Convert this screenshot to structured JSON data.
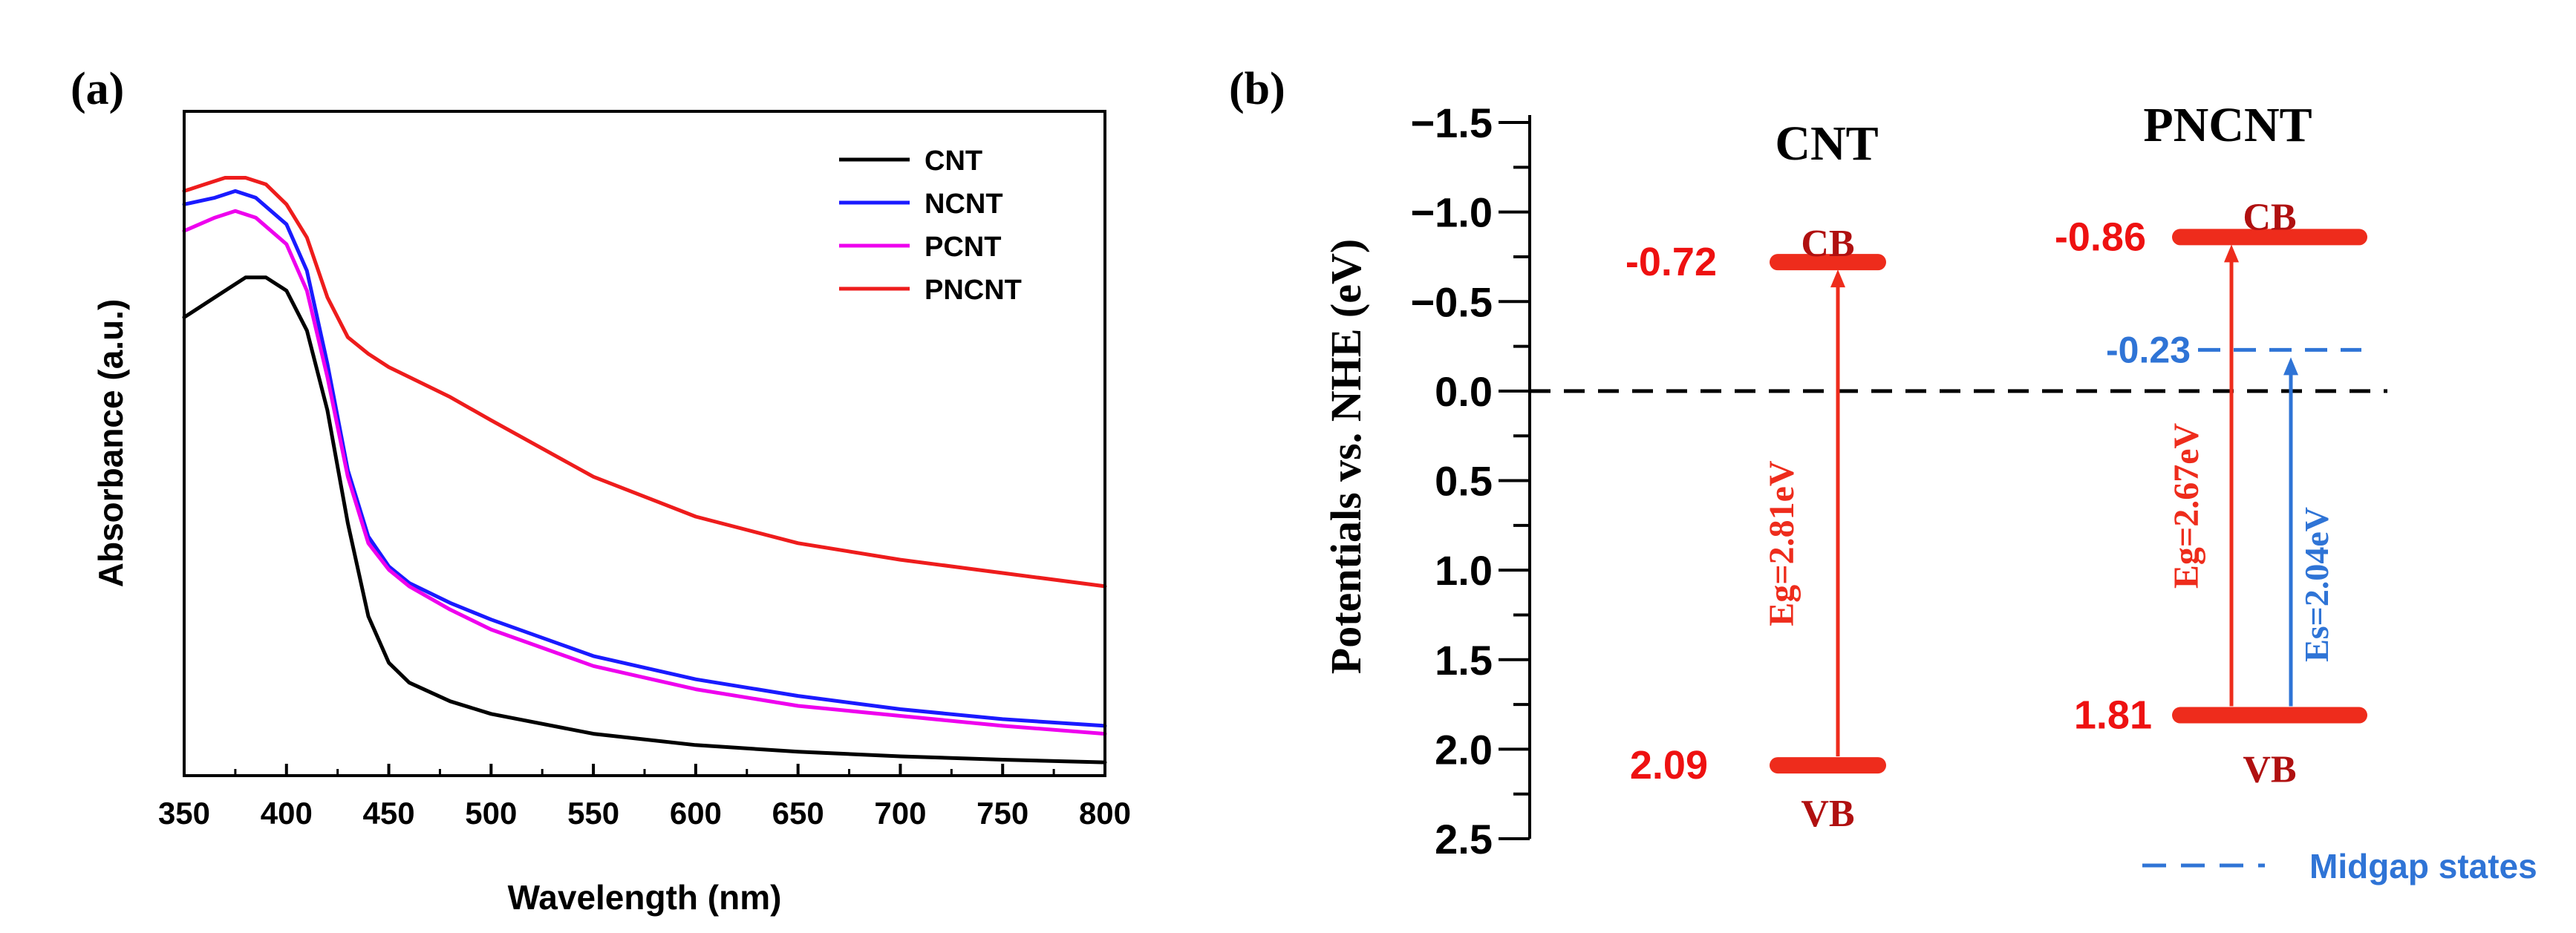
{
  "figure": {
    "panel_a_label": "(a)",
    "panel_b_label": "(b)"
  },
  "chart_data": [
    {
      "type": "line",
      "panel": "(a)",
      "title": "",
      "xlabel": "Wavelength (nm)",
      "ylabel": "Absorbance (a.u.)",
      "xlim": [
        350,
        800
      ],
      "ylim": [
        0,
        1
      ],
      "xticks": [
        350,
        400,
        450,
        500,
        550,
        600,
        650,
        700,
        750,
        800
      ],
      "yticks_shown": false,
      "legend_position": "top-right",
      "series": [
        {
          "name": "CNT",
          "color": "#000000",
          "x": [
            350,
            365,
            380,
            390,
            400,
            410,
            420,
            430,
            440,
            450,
            460,
            480,
            500,
            550,
            600,
            650,
            700,
            750,
            800
          ],
          "y": [
            0.69,
            0.72,
            0.75,
            0.75,
            0.73,
            0.67,
            0.55,
            0.38,
            0.24,
            0.17,
            0.14,
            0.112,
            0.093,
            0.063,
            0.046,
            0.036,
            0.029,
            0.024,
            0.02
          ]
        },
        {
          "name": "NCNT",
          "color": "#1a1aff",
          "x": [
            350,
            365,
            375,
            385,
            400,
            410,
            420,
            430,
            440,
            450,
            460,
            480,
            500,
            550,
            600,
            650,
            700,
            750,
            800
          ],
          "y": [
            0.86,
            0.87,
            0.88,
            0.87,
            0.83,
            0.76,
            0.62,
            0.46,
            0.36,
            0.315,
            0.29,
            0.26,
            0.235,
            0.18,
            0.145,
            0.12,
            0.1,
            0.085,
            0.075
          ]
        },
        {
          "name": "PCNT",
          "color": "#ee00ee",
          "x": [
            350,
            365,
            375,
            385,
            400,
            410,
            420,
            430,
            440,
            450,
            460,
            480,
            500,
            550,
            600,
            650,
            700,
            750,
            800
          ],
          "y": [
            0.82,
            0.84,
            0.85,
            0.84,
            0.8,
            0.73,
            0.6,
            0.45,
            0.35,
            0.31,
            0.285,
            0.25,
            0.22,
            0.165,
            0.13,
            0.105,
            0.09,
            0.075,
            0.063
          ]
        },
        {
          "name": "PNCNT",
          "color": "#ee1c1c",
          "x": [
            350,
            360,
            370,
            380,
            390,
            400,
            410,
            420,
            430,
            440,
            450,
            460,
            480,
            500,
            550,
            600,
            650,
            700,
            750,
            800
          ],
          "y": [
            0.88,
            0.89,
            0.9,
            0.9,
            0.89,
            0.86,
            0.81,
            0.72,
            0.66,
            0.635,
            0.615,
            0.6,
            0.57,
            0.535,
            0.45,
            0.39,
            0.35,
            0.325,
            0.305,
            0.285
          ]
        }
      ]
    },
    {
      "type": "band_diagram",
      "panel": "(b)",
      "ylabel": "Potentials vs. NHE (eV)",
      "ylim": [
        -1.5,
        2.5
      ],
      "y_inverted": true,
      "yticks": [
        -1.5,
        -1.0,
        -0.5,
        0.0,
        0.5,
        1.0,
        1.5,
        2.0,
        2.5
      ],
      "ytick_labels": [
        "−1.5",
        "−1.0",
        "−0.5",
        "0.0",
        "0.5",
        "1.0",
        "1.5",
        "2.0",
        "2.5"
      ],
      "reference_line": 0.0,
      "materials": [
        {
          "name": "CNT",
          "cb": -0.72,
          "cb_label": "-0.72",
          "cb_text": "CB",
          "vb": 2.09,
          "vb_label": "2.09",
          "vb_text": "VB",
          "gap_label": "Eg=2.81eV"
        },
        {
          "name": "PNCNT",
          "cb": -0.86,
          "cb_label": "-0.86",
          "cb_text": "CB",
          "vb": 1.81,
          "vb_label": "1.81",
          "vb_text": "VB",
          "gap_label": "Eg=2.67eV",
          "midgap": -0.23,
          "midgap_label": "-0.23",
          "midgap_gap_label": "Es=2.04eV"
        }
      ],
      "legend": {
        "midgap_text": "Midgap states"
      },
      "colors": {
        "band": "#ee2c1c",
        "label_red": "#ee1111",
        "band_text": "#b01010",
        "midgap": "#2f74d6"
      }
    }
  ]
}
